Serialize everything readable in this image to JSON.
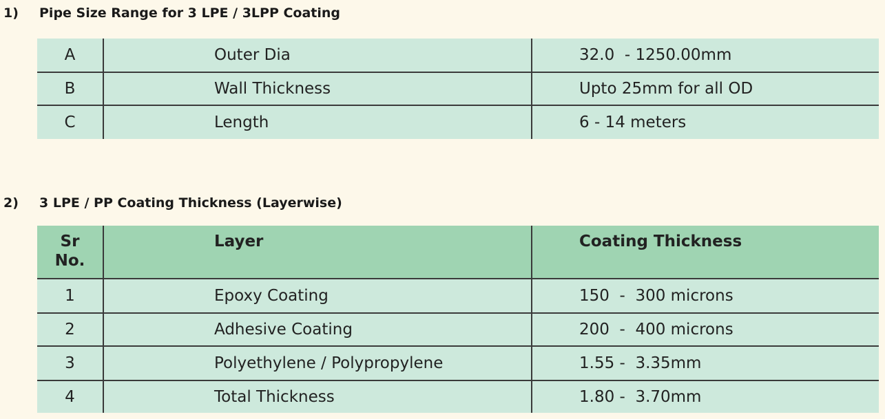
{
  "sections": [
    {
      "number": "1)",
      "title": "Pipe Size Range for 3 LPE / 3LPP Coating",
      "table": {
        "rows": [
          [
            "A",
            "Outer Dia",
            "32.0  - 1250.00mm"
          ],
          [
            "B",
            "Wall Thickness",
            "Upto 25mm for all OD"
          ],
          [
            "C",
            "Length",
            "6 - 14 meters"
          ]
        ]
      }
    },
    {
      "number": "2)",
      "title": "3 LPE / PP Coating Thickness (Layerwise)",
      "table": {
        "header": [
          "Sr No.",
          "Layer",
          "Coating Thickness"
        ],
        "rows": [
          [
            "1",
            "Epoxy Coating",
            "150  -  300 microns"
          ],
          [
            "2",
            "Adhesive Coating",
            "200  -  400 microns"
          ],
          [
            "3",
            "Polyethylene / Polypropylene",
            "1.55 -  3.35mm"
          ],
          [
            "4",
            "Total Thickness",
            "1.80 -  3.70mm"
          ]
        ]
      }
    }
  ]
}
